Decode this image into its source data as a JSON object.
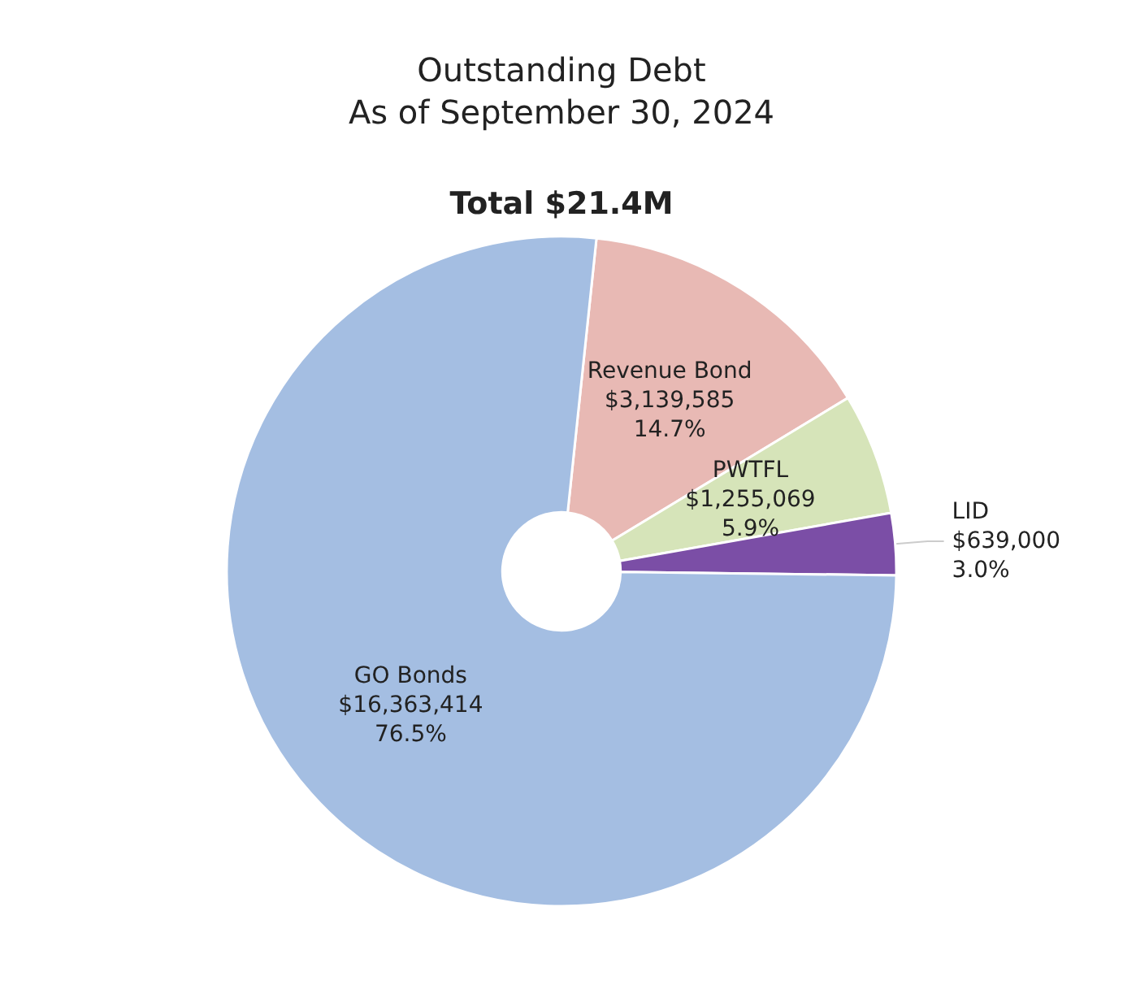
{
  "chart_data": {
    "type": "donut",
    "title": "Outstanding Debt",
    "subtitle": "As of September 30, 2024",
    "annotations": [
      "Total $21.4M"
    ],
    "categories": [
      "Revenue Bond",
      "PWTFL",
      "LID",
      "GO Bonds"
    ],
    "values": [
      3139585,
      1255069,
      639000,
      16363414
    ],
    "value_labels": [
      "$3,139,585\n14.7%",
      "$1,255,069\n5.9%",
      "$639,000\n3.0%",
      "$16,363,414\n76.5%"
    ],
    "colors": [
      "#e8b9b4",
      "#d6e4b9",
      "#7b4ea6",
      "#a4bee2"
    ],
    "legend": false
  }
}
